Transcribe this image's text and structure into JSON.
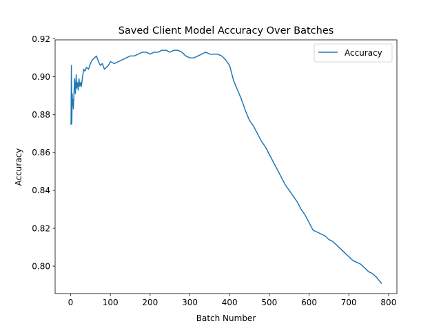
{
  "chart_data": {
    "type": "line",
    "title": "Saved Client Model Accuracy Over Batches",
    "xlabel": "Batch Number",
    "ylabel": "Accuracy",
    "xlim": [
      -39,
      821
    ],
    "ylim": [
      0.7855,
      0.9195
    ],
    "xticks": [
      0,
      100,
      200,
      300,
      400,
      500,
      600,
      700,
      800
    ],
    "xtick_labels": [
      "0",
      "100",
      "200",
      "300",
      "400",
      "500",
      "600",
      "700",
      "800"
    ],
    "yticks": [
      0.8,
      0.82,
      0.84,
      0.86,
      0.88,
      0.9,
      0.92
    ],
    "ytick_labels": [
      "0.80",
      "0.82",
      "0.84",
      "0.86",
      "0.88",
      "0.90",
      "0.92"
    ],
    "grid": false,
    "legend_position": "top-right",
    "series": [
      {
        "name": "Accuracy",
        "color": "#1f77b4",
        "x": [
          0,
          1,
          2,
          3,
          4,
          5,
          6,
          7,
          8,
          9,
          10,
          12,
          14,
          15,
          17,
          19,
          21,
          23,
          25,
          27,
          30,
          33,
          36,
          40,
          45,
          50,
          55,
          60,
          65,
          70,
          75,
          80,
          85,
          90,
          95,
          100,
          110,
          120,
          130,
          140,
          150,
          160,
          170,
          180,
          190,
          200,
          210,
          220,
          230,
          240,
          250,
          260,
          270,
          280,
          290,
          300,
          310,
          320,
          330,
          340,
          350,
          360,
          370,
          380,
          390,
          400,
          410,
          420,
          430,
          440,
          450,
          460,
          470,
          480,
          490,
          500,
          510,
          520,
          530,
          540,
          550,
          560,
          570,
          580,
          590,
          600,
          610,
          620,
          630,
          640,
          650,
          660,
          670,
          680,
          690,
          700,
          710,
          720,
          730,
          740,
          750,
          760,
          770,
          782
        ],
        "values": [
          0.875,
          0.875,
          0.906,
          0.875,
          0.891,
          0.885,
          0.888,
          0.883,
          0.889,
          0.894,
          0.899,
          0.891,
          0.901,
          0.894,
          0.897,
          0.893,
          0.899,
          0.895,
          0.897,
          0.895,
          0.9,
          0.904,
          0.903,
          0.905,
          0.904,
          0.907,
          0.909,
          0.91,
          0.911,
          0.908,
          0.906,
          0.907,
          0.904,
          0.905,
          0.906,
          0.908,
          0.907,
          0.908,
          0.909,
          0.91,
          0.911,
          0.911,
          0.912,
          0.913,
          0.913,
          0.912,
          0.913,
          0.913,
          0.914,
          0.914,
          0.913,
          0.914,
          0.914,
          0.913,
          0.911,
          0.91,
          0.91,
          0.911,
          0.912,
          0.913,
          0.912,
          0.912,
          0.912,
          0.911,
          0.909,
          0.906,
          0.898,
          0.893,
          0.888,
          0.882,
          0.877,
          0.874,
          0.87,
          0.866,
          0.863,
          0.859,
          0.855,
          0.851,
          0.847,
          0.843,
          0.84,
          0.837,
          0.834,
          0.83,
          0.827,
          0.823,
          0.819,
          0.818,
          0.817,
          0.816,
          0.814,
          0.813,
          0.811,
          0.809,
          0.807,
          0.805,
          0.803,
          0.802,
          0.801,
          0.799,
          0.797,
          0.796,
          0.794,
          0.791
        ]
      }
    ]
  }
}
